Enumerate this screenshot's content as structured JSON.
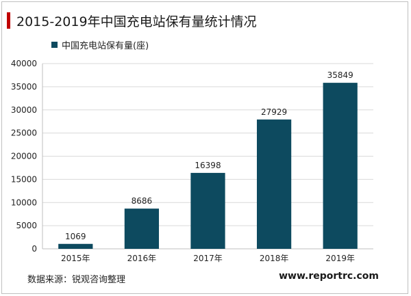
{
  "title": "2015-2019年中国充电站保有量统计情况",
  "source": "数据来源：锐观咨询整理",
  "watermark": "www.reportrc.com",
  "colors": {
    "bar": "#0d4a5f",
    "accent": "#c00000",
    "grid": "#d9d9d9"
  },
  "chart_data": {
    "type": "bar",
    "categories": [
      "2015年",
      "2016年",
      "2017年",
      "2018年",
      "2019年"
    ],
    "series": [
      {
        "name": "中国充电站保有量(座)",
        "values": [
          1069,
          8686,
          16398,
          27929,
          35849
        ]
      }
    ],
    "ylim": [
      0,
      40000
    ],
    "yticks": [
      0,
      5000,
      10000,
      15000,
      20000,
      25000,
      30000,
      35000,
      40000
    ],
    "grid": true,
    "legend_position": "top-left",
    "data_labels": true
  }
}
